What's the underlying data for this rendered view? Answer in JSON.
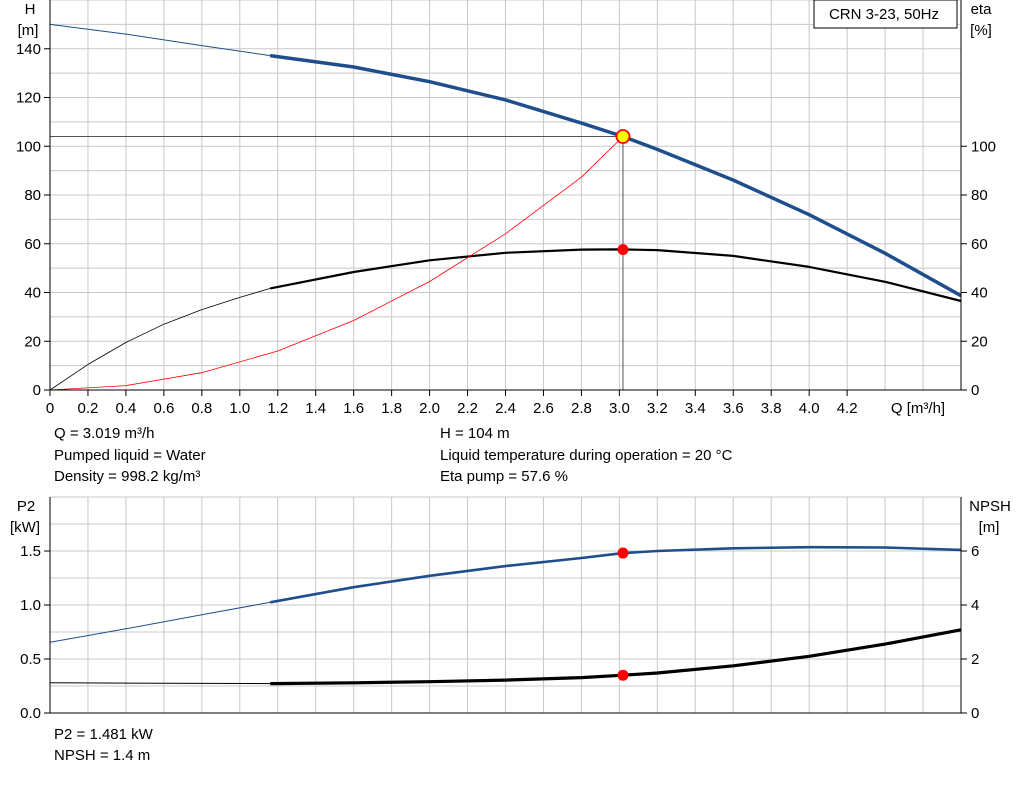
{
  "chart_data": [
    {
      "type": "line",
      "id": "performance",
      "title": "CRN 3-23, 50Hz",
      "xlabel": "Q [m³/h]",
      "xlim": [
        0,
        4.8
      ],
      "x_ticks": [
        "0",
        "0.2",
        "0.4",
        "0.6",
        "0.8",
        "1.0",
        "1.2",
        "1.4",
        "1.6",
        "1.8",
        "2.0",
        "2.2",
        "2.4",
        "2.6",
        "2.8",
        "3.0",
        "3.2",
        "3.4",
        "3.6",
        "3.8",
        "4.0",
        "4.2"
      ],
      "y_left": {
        "label_line1": "H",
        "label_line2": "[m]",
        "lim": [
          0,
          160
        ],
        "ticks": [
          "0",
          "20",
          "40",
          "60",
          "80",
          "100",
          "120",
          "140"
        ]
      },
      "y_right": {
        "label_line1": "eta",
        "label_line2": "[%]",
        "lim": [
          0,
          160
        ],
        "ticks": [
          "0",
          "20",
          "40",
          "60",
          "80",
          "100"
        ]
      },
      "grid": true,
      "legend": "top-right",
      "colors": {
        "head": "#1f4e8c",
        "eta": "#000000",
        "system": "#ff0000",
        "duty_point": "#ff0000",
        "duty_marker_fill": "#ffff00"
      },
      "series": [
        {
          "key": "head_ext",
          "axis": "left",
          "x": [
            0,
            0.4,
            0.8,
            1.16
          ],
          "y": [
            150,
            146,
            141.3,
            137.2
          ]
        },
        {
          "key": "head",
          "axis": "left",
          "x": [
            1.16,
            1.6,
            2.0,
            2.4,
            2.8,
            3.019,
            3.2,
            3.6,
            4.0,
            4.4,
            4.8
          ],
          "y": [
            137.2,
            132.5,
            126.5,
            119,
            109.5,
            104,
            98.7,
            86.1,
            71.9,
            56.1,
            38.7
          ]
        },
        {
          "key": "eta_ext",
          "axis": "right",
          "x": [
            0,
            0.2,
            0.4,
            0.6,
            0.8,
            1.0,
            1.16
          ],
          "y": [
            0,
            10.5,
            19.5,
            27,
            33,
            38,
            41.7
          ]
        },
        {
          "key": "eta",
          "axis": "right",
          "x": [
            1.16,
            1.6,
            2.0,
            2.4,
            2.8,
            3.0,
            3.2,
            3.6,
            4.0,
            4.4,
            4.8
          ],
          "y": [
            41.7,
            48.4,
            53.2,
            56.3,
            57.6,
            57.7,
            57.4,
            55,
            50.5,
            44.4,
            36.5
          ]
        },
        {
          "key": "system",
          "axis": "left",
          "x": [
            0,
            0.4,
            0.8,
            1.2,
            1.6,
            2.0,
            2.4,
            2.8,
            3.019
          ],
          "y": [
            0,
            1.8,
            7.1,
            16,
            28.5,
            44.5,
            64.1,
            87.3,
            104
          ]
        }
      ],
      "duty_point": {
        "q": 3.019,
        "h": 104,
        "eta": 57.6
      }
    },
    {
      "type": "line",
      "id": "power_npsh",
      "xlim": [
        0,
        4.8
      ],
      "y_left": {
        "label_line1": "P2",
        "label_line2": "[kW]",
        "lim": [
          0,
          2.0
        ],
        "ticks": [
          "0.0",
          "0.5",
          "1.0",
          "1.5"
        ]
      },
      "y_right": {
        "label_line1": "NPSH",
        "label_line2": "[m]",
        "lim": [
          0,
          8
        ],
        "ticks": [
          "0",
          "2",
          "4",
          "6"
        ]
      },
      "grid": true,
      "colors": {
        "power": "#1f4e8c",
        "npsh": "#000000",
        "duty_point": "#ff0000"
      },
      "series": [
        {
          "key": "p2_ext",
          "axis": "left",
          "x": [
            0,
            0.4,
            0.8,
            1.16
          ],
          "y": [
            0.655,
            0.78,
            0.91,
            1.025
          ]
        },
        {
          "key": "p2",
          "axis": "left",
          "x": [
            1.16,
            1.6,
            2.0,
            2.4,
            2.8,
            3.019,
            3.2,
            3.6,
            4.0,
            4.4,
            4.8
          ],
          "y": [
            1.025,
            1.165,
            1.27,
            1.36,
            1.435,
            1.481,
            1.5,
            1.525,
            1.535,
            1.532,
            1.51
          ]
        },
        {
          "key": "npsh_ext",
          "axis": "right",
          "x": [
            0,
            0.6,
            1.16
          ],
          "y": [
            1.12,
            1.1,
            1.09
          ]
        },
        {
          "key": "npsh",
          "axis": "right",
          "x": [
            1.16,
            1.6,
            2.0,
            2.4,
            2.8,
            3.019,
            3.2,
            3.6,
            4.0,
            4.4,
            4.8
          ],
          "y": [
            1.09,
            1.12,
            1.16,
            1.22,
            1.31,
            1.4,
            1.48,
            1.75,
            2.1,
            2.55,
            3.08
          ]
        }
      ],
      "duty_point": {
        "q": 3.019,
        "p2": 1.481,
        "npsh": 1.4
      }
    }
  ],
  "info_top": {
    "q": "Q = 3.019 m³/h",
    "liquid": "Pumped liquid = Water",
    "density": "Density = 998.2 kg/m³",
    "h": "H = 104 m",
    "temperature": "Liquid temperature during operation = 20 °C",
    "eta": "Eta pump = 57.6 %"
  },
  "info_bottom": {
    "p2": "P2 = 1.481 kW",
    "npsh": "NPSH = 1.4 m"
  }
}
